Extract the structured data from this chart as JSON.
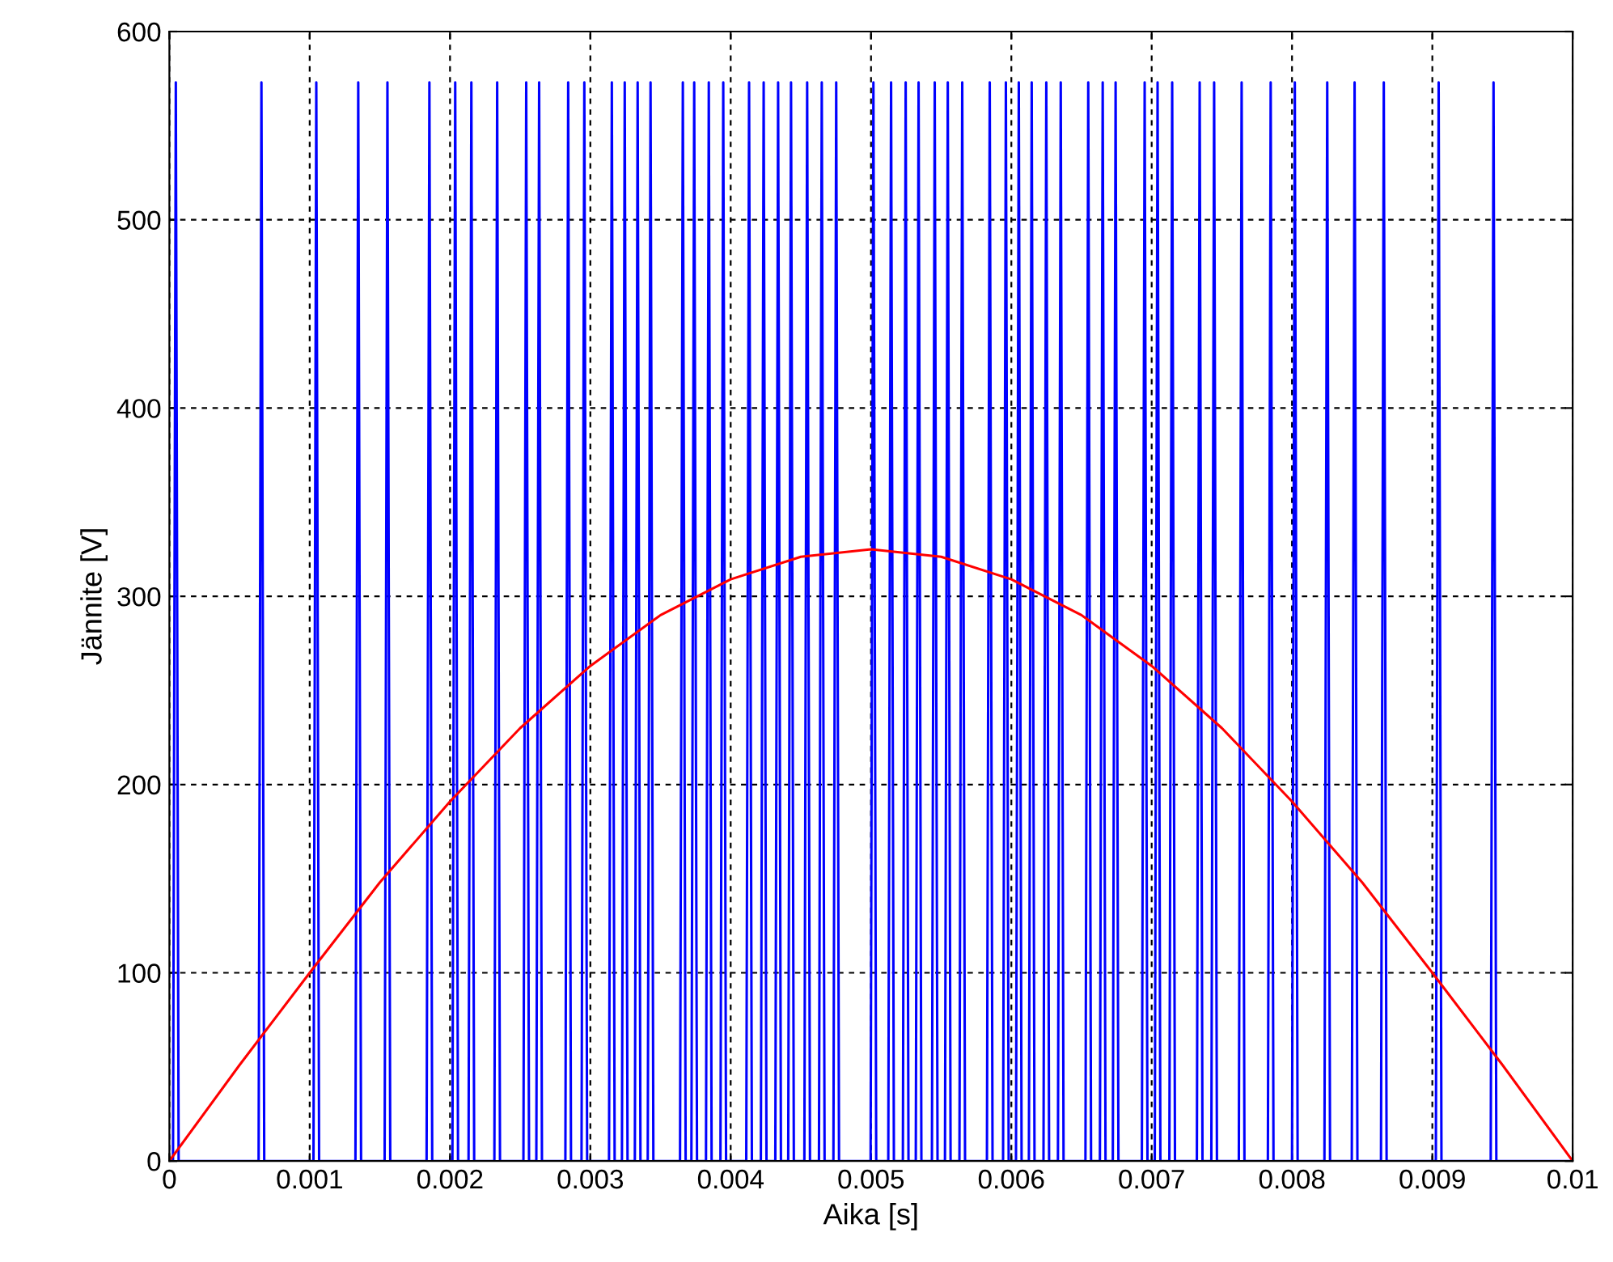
{
  "chart_data": {
    "type": "line",
    "xlabel": "Aika [s]",
    "ylabel": "Jännite [V]",
    "xlim": [
      0,
      0.01
    ],
    "ylim": [
      0,
      600
    ],
    "xticks": [
      0,
      0.001,
      0.002,
      0.003,
      0.004,
      0.005,
      0.006,
      0.007,
      0.008,
      0.009,
      0.01
    ],
    "yticks": [
      0,
      100,
      200,
      300,
      400,
      500,
      600
    ],
    "grid": true,
    "legend": false,
    "series": [
      {
        "color": "#0000ff",
        "x": [
          0,
          2.6e-05,
          4.6e-05,
          6.6e-05,
          0.000636,
          0.000656,
          0.000676,
          0.001027,
          0.001047,
          0.001067,
          0.001326,
          0.001346,
          0.001366,
          0.001534,
          0.001554,
          0.001574,
          0.001833,
          0.001853,
          0.001873,
          0.002017,
          0.002037,
          0.002057,
          0.002132,
          0.002152,
          0.002172,
          0.002316,
          0.002336,
          0.002356,
          0.002523,
          0.002543,
          0.002563,
          0.002615,
          0.002635,
          0.002655,
          0.002822,
          0.002842,
          0.002862,
          0.002937,
          0.002957,
          0.002977,
          0.003133,
          0.003153,
          0.003173,
          0.003225,
          0.003245,
          0.003265,
          0.003317,
          0.003337,
          0.003357,
          0.003409,
          0.003429,
          0.003449,
          0.003639,
          0.003659,
          0.003679,
          0.00372,
          0.00374,
          0.00376,
          0.003824,
          0.003844,
          0.003864,
          0.003927,
          0.003947,
          0.003967,
          0.004111,
          0.004131,
          0.004151,
          0.004215,
          0.004235,
          0.004255,
          0.004318,
          0.004338,
          0.004358,
          0.00441,
          0.00443,
          0.00445,
          0.004525,
          0.004545,
          0.004565,
          0.004629,
          0.004649,
          0.004669,
          0.004732,
          0.004752,
          0.004772,
          0.004997,
          0.005017,
          0.005037,
          0.005123,
          0.005143,
          0.005163,
          0.005227,
          0.005247,
          0.005267,
          0.005319,
          0.005339,
          0.005359,
          0.005434,
          0.005454,
          0.005474,
          0.005527,
          0.005547,
          0.005567,
          0.00563,
          0.00565,
          0.00567,
          0.005826,
          0.005846,
          0.005866,
          0.005941,
          0.005961,
          0.005981,
          0.006033,
          0.006053,
          0.006073,
          0.006125,
          0.006145,
          0.006165,
          0.006229,
          0.006249,
          0.006269,
          0.006332,
          0.006352,
          0.006372,
          0.006528,
          0.006548,
          0.006568,
          0.006631,
          0.006651,
          0.006671,
          0.006723,
          0.006743,
          0.006763,
          0.00693,
          0.00695,
          0.00697,
          0.007022,
          0.007042,
          0.007062,
          0.007126,
          0.007146,
          0.007166,
          0.007322,
          0.007342,
          0.007362,
          0.007425,
          0.007445,
          0.007465,
          0.007621,
          0.007641,
          0.007661,
          0.007828,
          0.007848,
          0.007868,
          0.008,
          0.00802,
          0.00804,
          0.008231,
          0.008251,
          0.008271,
          0.008426,
          0.008446,
          0.008466,
          0.008634,
          0.008654,
          0.008674,
          0.009025,
          0.009045,
          0.009065,
          0.009416,
          0.009436,
          0.009456,
          0.01
        ],
        "values": [
          0,
          0,
          573,
          0,
          0,
          573,
          0,
          0,
          573,
          0,
          0,
          573,
          0,
          0,
          573,
          0,
          0,
          573,
          0,
          0,
          573,
          0,
          0,
          573,
          0,
          0,
          573,
          0,
          0,
          573,
          0,
          0,
          573,
          0,
          0,
          573,
          0,
          0,
          573,
          0,
          0,
          573,
          0,
          0,
          573,
          0,
          0,
          573,
          0,
          0,
          573,
          0,
          0,
          573,
          0,
          0,
          573,
          0,
          0,
          573,
          0,
          0,
          573,
          0,
          0,
          573,
          0,
          0,
          573,
          0,
          0,
          573,
          0,
          0,
          573,
          0,
          0,
          573,
          0,
          0,
          573,
          0,
          0,
          573,
          0,
          0,
          573,
          0,
          0,
          573,
          0,
          0,
          573,
          0,
          0,
          573,
          0,
          0,
          573,
          0,
          0,
          573,
          0,
          0,
          573,
          0,
          0,
          573,
          0,
          0,
          573,
          0,
          0,
          573,
          0,
          0,
          573,
          0,
          0,
          573,
          0,
          0,
          573,
          0,
          0,
          573,
          0,
          0,
          573,
          0,
          0,
          573,
          0,
          0,
          573,
          0,
          0,
          573,
          0,
          0,
          573,
          0,
          0,
          573,
          0,
          0,
          573,
          0,
          0,
          573,
          0,
          0,
          573,
          0,
          0,
          573,
          0,
          0,
          573,
          0,
          0,
          573,
          0,
          0,
          573,
          0,
          0,
          573,
          0,
          0,
          573,
          0,
          0
        ]
      },
      {
        "color": "#ff0000",
        "x": [
          0,
          0.0005,
          0.001,
          0.0015,
          0.002,
          0.0025,
          0.003,
          0.0035,
          0.004,
          0.0045,
          0.005,
          0.0055,
          0.006,
          0.0065,
          0.007,
          0.0075,
          0.008,
          0.0085,
          0.009,
          0.0095,
          0.01
        ],
        "values": [
          0,
          51,
          100,
          148,
          191,
          230,
          263,
          290,
          309,
          321,
          325,
          321,
          309,
          290,
          263,
          230,
          191,
          148,
          100,
          51,
          0
        ]
      }
    ]
  }
}
